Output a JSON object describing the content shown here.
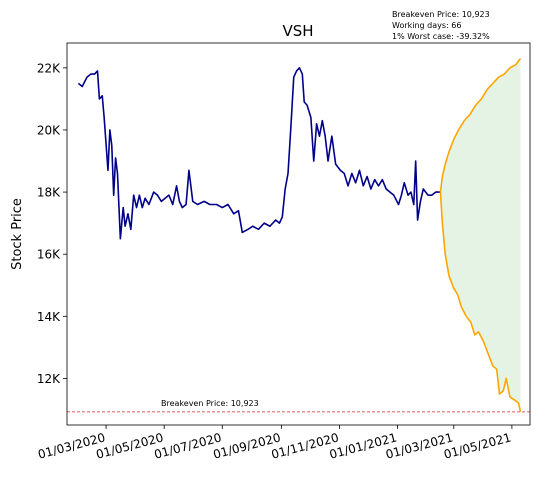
{
  "chart_data": {
    "type": "line",
    "title": "VSH",
    "ylabel": "Stock Price",
    "xlabel": "",
    "x_ticks": [
      "2020-03-01",
      "2020-05-01",
      "2020-07-01",
      "2020-09-01",
      "2020-11-01",
      "2021-01-01",
      "2021-03-01",
      "2021-05-01"
    ],
    "x_tick_labels": [
      "01/03/2020",
      "01/05/2020",
      "01/07/2020",
      "01/09/2020",
      "01/11/2020",
      "01/01/2021",
      "01/03/2021",
      "01/05/2021"
    ],
    "xlim": [
      "2020-01-20",
      "2021-05-20"
    ],
    "y_ticks": [
      12000,
      14000,
      16000,
      18000,
      20000,
      22000
    ],
    "y_tick_labels": [
      "12K",
      "14K",
      "16K",
      "18K",
      "20K",
      "22K"
    ],
    "ylim": [
      10500,
      22800
    ],
    "grid": false,
    "stats": {
      "breakeven": "Breakeven Price: 10,923",
      "working_days": "Working days: 66",
      "worst_case": "1% Worst case: -39.32%"
    },
    "breakeven_line": {
      "value": 10923,
      "label": "Breakeven Price: 10,923",
      "color": "#d62728"
    },
    "series": [
      {
        "color": "#00008b",
        "points": [
          [
            "2020-02-01",
            21500
          ],
          [
            "2020-02-05",
            21400
          ],
          [
            "2020-02-10",
            21700
          ],
          [
            "2020-02-14",
            21800
          ],
          [
            "2020-02-18",
            21800
          ],
          [
            "2020-02-21",
            21900
          ],
          [
            "2020-02-23",
            21000
          ],
          [
            "2020-02-26",
            21100
          ],
          [
            "2020-02-28",
            20400
          ],
          [
            "2020-03-03",
            18700
          ],
          [
            "2020-03-05",
            20000
          ],
          [
            "2020-03-07",
            19500
          ],
          [
            "2020-03-09",
            17900
          ],
          [
            "2020-03-11",
            19100
          ],
          [
            "2020-03-13",
            18600
          ],
          [
            "2020-03-16",
            16500
          ],
          [
            "2020-03-19",
            17500
          ],
          [
            "2020-03-21",
            16900
          ],
          [
            "2020-03-24",
            17300
          ],
          [
            "2020-03-27",
            16800
          ],
          [
            "2020-03-30",
            17900
          ],
          [
            "2020-04-02",
            17500
          ],
          [
            "2020-04-05",
            17900
          ],
          [
            "2020-04-08",
            17500
          ],
          [
            "2020-04-11",
            17800
          ],
          [
            "2020-04-15",
            17600
          ],
          [
            "2020-04-20",
            18000
          ],
          [
            "2020-04-24",
            17900
          ],
          [
            "2020-04-28",
            17700
          ],
          [
            "2020-05-02",
            17800
          ],
          [
            "2020-05-06",
            17900
          ],
          [
            "2020-05-10",
            17600
          ],
          [
            "2020-05-14",
            18200
          ],
          [
            "2020-05-17",
            17700
          ],
          [
            "2020-05-20",
            17500
          ],
          [
            "2020-05-24",
            17600
          ],
          [
            "2020-05-27",
            18700
          ],
          [
            "2020-05-31",
            17700
          ],
          [
            "2020-06-05",
            17600
          ],
          [
            "2020-06-12",
            17700
          ],
          [
            "2020-06-18",
            17600
          ],
          [
            "2020-06-25",
            17600
          ],
          [
            "2020-07-01",
            17500
          ],
          [
            "2020-07-07",
            17600
          ],
          [
            "2020-07-13",
            17300
          ],
          [
            "2020-07-18",
            17400
          ],
          [
            "2020-07-22",
            16700
          ],
          [
            "2020-07-28",
            16800
          ],
          [
            "2020-08-02",
            16900
          ],
          [
            "2020-08-08",
            16800
          ],
          [
            "2020-08-14",
            17000
          ],
          [
            "2020-08-20",
            16900
          ],
          [
            "2020-08-26",
            17100
          ],
          [
            "2020-08-30",
            17000
          ],
          [
            "2020-09-02",
            17200
          ],
          [
            "2020-09-05",
            18100
          ],
          [
            "2020-09-08",
            18600
          ],
          [
            "2020-09-11",
            20100
          ],
          [
            "2020-09-14",
            21700
          ],
          [
            "2020-09-17",
            21900
          ],
          [
            "2020-09-20",
            22000
          ],
          [
            "2020-09-23",
            21800
          ],
          [
            "2020-09-25",
            20900
          ],
          [
            "2020-09-28",
            20800
          ],
          [
            "2020-10-02",
            20400
          ],
          [
            "2020-10-05",
            19000
          ],
          [
            "2020-10-08",
            20200
          ],
          [
            "2020-10-11",
            19800
          ],
          [
            "2020-10-14",
            20300
          ],
          [
            "2020-10-17",
            19800
          ],
          [
            "2020-10-20",
            19000
          ],
          [
            "2020-10-24",
            19800
          ],
          [
            "2020-10-28",
            18900
          ],
          [
            "2020-11-02",
            18700
          ],
          [
            "2020-11-06",
            18600
          ],
          [
            "2020-11-10",
            18200
          ],
          [
            "2020-11-14",
            18600
          ],
          [
            "2020-11-18",
            18300
          ],
          [
            "2020-11-22",
            18700
          ],
          [
            "2020-11-26",
            18200
          ],
          [
            "2020-11-30",
            18500
          ],
          [
            "2020-12-04",
            18100
          ],
          [
            "2020-12-08",
            18400
          ],
          [
            "2020-12-12",
            18200
          ],
          [
            "2020-12-16",
            18400
          ],
          [
            "2020-12-20",
            18100
          ],
          [
            "2020-12-24",
            18000
          ],
          [
            "2020-12-28",
            17900
          ],
          [
            "2021-01-02",
            17600
          ],
          [
            "2021-01-05",
            17900
          ],
          [
            "2021-01-08",
            18300
          ],
          [
            "2021-01-12",
            17900
          ],
          [
            "2021-01-15",
            18000
          ],
          [
            "2021-01-18",
            17600
          ],
          [
            "2021-01-20",
            19000
          ],
          [
            "2021-01-22",
            17100
          ],
          [
            "2021-01-25",
            17700
          ],
          [
            "2021-01-28",
            18100
          ],
          [
            "2021-02-02",
            17900
          ],
          [
            "2021-02-06",
            17900
          ],
          [
            "2021-02-10",
            18000
          ],
          [
            "2021-02-15",
            18000
          ]
        ]
      },
      {
        "color": "#ffa500",
        "points": [
          [
            "2021-02-15",
            18000
          ],
          [
            "2021-02-17",
            18500
          ],
          [
            "2021-02-20",
            18900
          ],
          [
            "2021-02-24",
            19300
          ],
          [
            "2021-03-01",
            19700
          ],
          [
            "2021-03-06",
            20000
          ],
          [
            "2021-03-12",
            20300
          ],
          [
            "2021-03-18",
            20500
          ],
          [
            "2021-03-24",
            20800
          ],
          [
            "2021-03-30",
            21000
          ],
          [
            "2021-04-05",
            21300
          ],
          [
            "2021-04-11",
            21500
          ],
          [
            "2021-04-17",
            21700
          ],
          [
            "2021-04-23",
            21800
          ],
          [
            "2021-04-29",
            22000
          ],
          [
            "2021-05-05",
            22100
          ],
          [
            "2021-05-10",
            22300
          ]
        ]
      },
      {
        "color": "#ffa500",
        "points": [
          [
            "2021-02-15",
            18000
          ],
          [
            "2021-02-17",
            17000
          ],
          [
            "2021-02-20",
            16000
          ],
          [
            "2021-02-24",
            15300
          ],
          [
            "2021-03-01",
            14900
          ],
          [
            "2021-03-05",
            14700
          ],
          [
            "2021-03-09",
            14300
          ],
          [
            "2021-03-14",
            14000
          ],
          [
            "2021-03-19",
            13800
          ],
          [
            "2021-03-23",
            13400
          ],
          [
            "2021-03-27",
            13500
          ],
          [
            "2021-04-01",
            13200
          ],
          [
            "2021-04-06",
            12800
          ],
          [
            "2021-04-11",
            12400
          ],
          [
            "2021-04-15",
            12300
          ],
          [
            "2021-04-18",
            11500
          ],
          [
            "2021-04-22",
            11600
          ],
          [
            "2021-04-25",
            12000
          ],
          [
            "2021-04-29",
            11400
          ],
          [
            "2021-05-04",
            11300
          ],
          [
            "2021-05-08",
            11200
          ],
          [
            "2021-05-10",
            10923
          ]
        ]
      }
    ],
    "band": {
      "color": "#2ca02c",
      "opacity": 0.12,
      "between_series": [
        1,
        2
      ]
    }
  }
}
